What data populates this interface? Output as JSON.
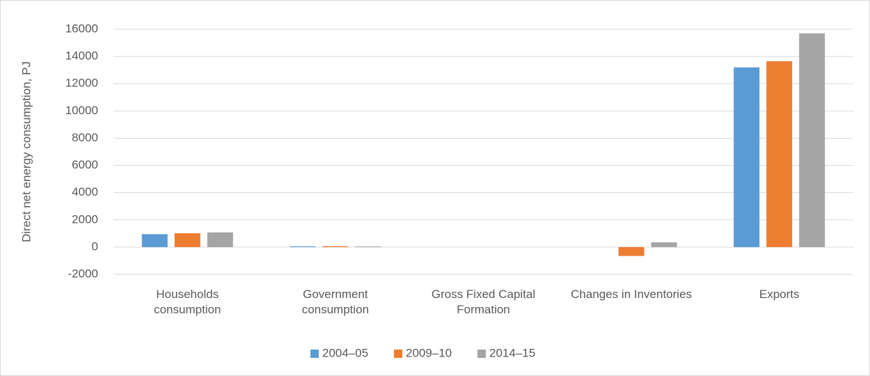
{
  "chart_data": {
    "type": "bar",
    "y_label": "Direct net energy consumption, PJ",
    "categories": [
      "Households consumption",
      "Government consumption",
      "Gross Fixed Capital Formation",
      "Changes in Inventories",
      "Exports"
    ],
    "series": [
      {
        "name": "2004–05",
        "color": "#5b9bd5",
        "values": [
          950,
          60,
          0,
          0,
          13200
        ]
      },
      {
        "name": "2009–10",
        "color": "#ed7d31",
        "values": [
          1020,
          70,
          0,
          -650,
          13650
        ]
      },
      {
        "name": "2014–15",
        "color": "#a5a5a5",
        "values": [
          1080,
          50,
          0,
          350,
          15700
        ]
      }
    ],
    "ylim": [
      -2000,
      16000
    ],
    "yticks": [
      -2000,
      0,
      2000,
      4000,
      6000,
      8000,
      10000,
      12000,
      14000,
      16000
    ],
    "grid": true,
    "legend": "bottom"
  }
}
